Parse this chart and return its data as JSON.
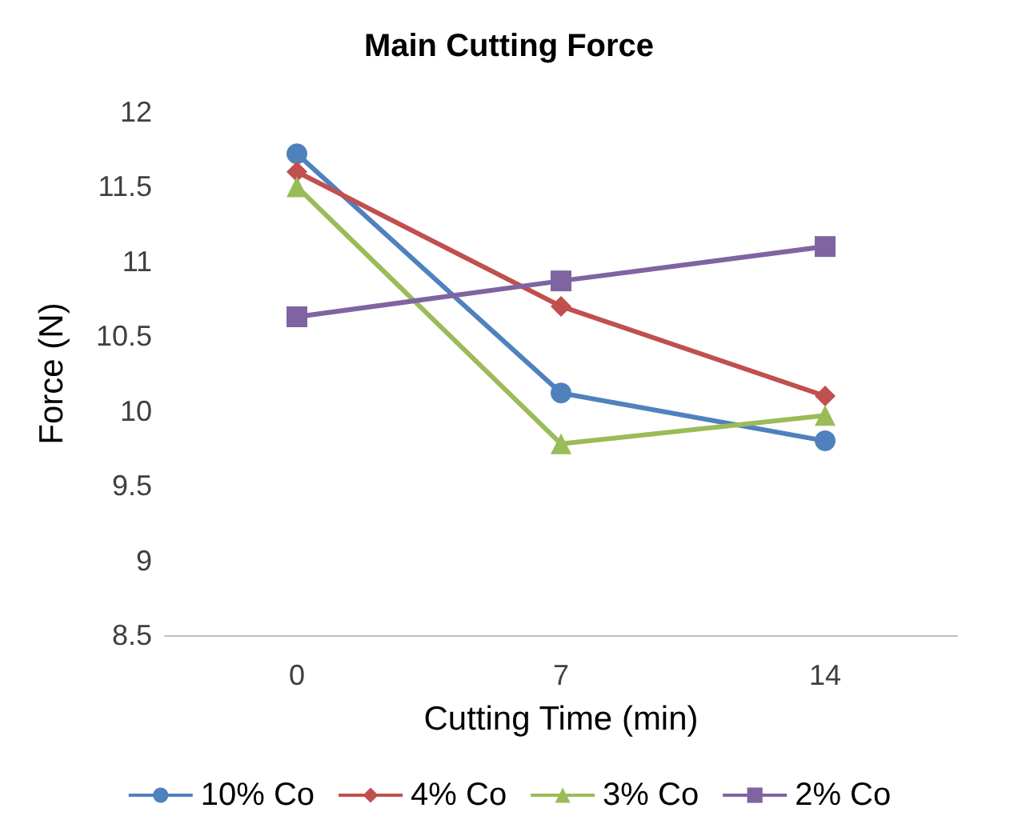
{
  "chart_data": {
    "type": "line",
    "title": "Main Cutting Force",
    "xlabel": "Cutting Time (min)",
    "ylabel": "Force (N)",
    "categories": [
      "0",
      "7",
      "14"
    ],
    "series": [
      {
        "name": "10% Co",
        "color": "#4f81bd",
        "marker": "circle",
        "values": [
          11.72,
          10.12,
          9.8
        ]
      },
      {
        "name": "4% Co",
        "color": "#c0504d",
        "marker": "diamond",
        "values": [
          11.6,
          10.7,
          10.1
        ]
      },
      {
        "name": "3% Co",
        "color": "#9bbb59",
        "marker": "triangle",
        "values": [
          11.5,
          9.78,
          9.97
        ]
      },
      {
        "name": "2% Co",
        "color": "#8064a2",
        "marker": "square",
        "values": [
          10.63,
          10.87,
          11.1
        ]
      }
    ],
    "ylim": [
      8.5,
      12
    ],
    "yticks": [
      8.5,
      9,
      9.5,
      10,
      10.5,
      11,
      11.5,
      12
    ],
    "grid": false,
    "legend": "bottom",
    "line_style": "solid"
  }
}
